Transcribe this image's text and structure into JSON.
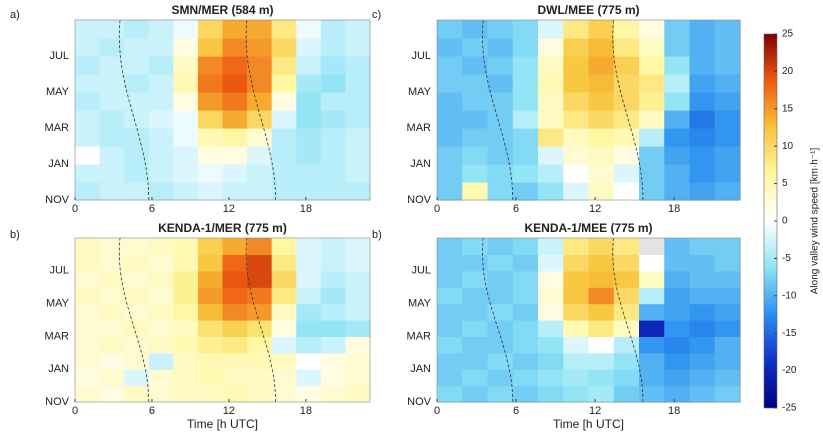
{
  "chart_data": [
    {
      "type": "heatmap",
      "label": "a)",
      "title": "SMN/MER (584 m)",
      "xlim": [
        0,
        23
      ],
      "xticks": [
        0,
        6,
        12,
        18
      ],
      "y_categories": [
        "NOV",
        null,
        "JAN",
        null,
        "MAR",
        null,
        "MAY",
        null,
        "JUL",
        null
      ],
      "values": [
        [
          -4,
          -3,
          -3,
          -4,
          -3,
          -2,
          -3,
          -3,
          -4,
          -4,
          -4,
          -4
        ],
        [
          -3,
          -3,
          -4,
          -3,
          -2,
          -1,
          -2,
          -3,
          -4,
          -4,
          -4,
          -3
        ],
        [
          0,
          -3,
          -4,
          -3,
          -2,
          2,
          2,
          -2,
          -4,
          -5,
          -4,
          -3
        ],
        [
          -3,
          -4,
          -4,
          -3,
          -1,
          5,
          6,
          3,
          -4,
          -5,
          -4,
          -3
        ],
        [
          -3,
          -4,
          -3,
          -2,
          -1,
          10,
          14,
          10,
          -2,
          -6,
          -5,
          -4
        ],
        [
          -4,
          -3,
          -3,
          -3,
          2,
          15,
          17,
          14,
          2,
          -6,
          -4,
          -4
        ],
        [
          -3,
          -3,
          -4,
          -3,
          5,
          17,
          19,
          16,
          6,
          -5,
          -6,
          -4
        ],
        [
          -4,
          -3,
          -3,
          -4,
          4,
          16,
          18,
          16,
          8,
          -3,
          -5,
          -4
        ],
        [
          -3,
          -4,
          -3,
          -3,
          2,
          12,
          16,
          15,
          10,
          -2,
          -4,
          -3
        ],
        [
          -3,
          -3,
          -4,
          -3,
          -1,
          10,
          14,
          14,
          8,
          -1,
          -4,
          -3
        ]
      ]
    },
    {
      "type": "heatmap",
      "label": "c)",
      "title": "DWL/MEE (775 m)",
      "xlim": [
        0,
        23
      ],
      "xticks": [
        0,
        6,
        12,
        18
      ],
      "y_categories": [
        "NOV",
        null,
        "JAN",
        null,
        "MAR",
        null,
        "MAY",
        null,
        "JUL",
        null
      ],
      "values": [
        [
          -8,
          5,
          -7,
          -8,
          -6,
          -2,
          4,
          0,
          -8,
          -10,
          -11,
          -10
        ],
        [
          -8,
          -6,
          -7,
          -6,
          -4,
          0,
          3,
          -2,
          -8,
          -10,
          -12,
          -11
        ],
        [
          -8,
          -7,
          -8,
          -7,
          -2,
          3,
          4,
          2,
          -8,
          -11,
          -12,
          -11
        ],
        [
          -9,
          -8,
          -8,
          -7,
          8,
          4,
          6,
          5,
          -4,
          -12,
          -13,
          -12
        ],
        [
          -9,
          -9,
          -8,
          -4,
          4,
          8,
          10,
          8,
          4,
          -10,
          -14,
          -12
        ],
        [
          -9,
          -8,
          -8,
          -6,
          4,
          10,
          12,
          10,
          7,
          -6,
          -12,
          -11
        ],
        [
          -8,
          -8,
          -9,
          -6,
          5,
          12,
          13,
          10,
          8,
          -4,
          -11,
          -10
        ],
        [
          -8,
          -9,
          -8,
          -6,
          4,
          12,
          14,
          11,
          6,
          -6,
          -10,
          -9
        ],
        [
          -9,
          -8,
          -9,
          -7,
          2,
          11,
          13,
          8,
          4,
          -8,
          -10,
          -9
        ],
        [
          -8,
          -9,
          -8,
          -7,
          -2,
          8,
          11,
          6,
          2,
          -8,
          -10,
          -9
        ]
      ]
    },
    {
      "type": "heatmap",
      "label": "b)",
      "title": "KENDA-1/MER (775 m)",
      "xlabel": "Time [h UTC]",
      "xlim": [
        0,
        23
      ],
      "xticks": [
        0,
        6,
        12,
        18
      ],
      "y_categories": [
        "NOV",
        null,
        "JAN",
        null,
        "MAR",
        null,
        "MAY",
        null,
        "JUL",
        null
      ],
      "values": [
        [
          3,
          2,
          4,
          3,
          4,
          4,
          5,
          4,
          3,
          2,
          3,
          4
        ],
        [
          2,
          3,
          -2,
          3,
          4,
          5,
          4,
          4,
          3,
          -2,
          2,
          3
        ],
        [
          3,
          2,
          3,
          -3,
          4,
          5,
          5,
          5,
          4,
          0,
          2,
          3
        ],
        [
          3,
          4,
          3,
          4,
          5,
          7,
          8,
          6,
          -2,
          -4,
          -3,
          2
        ],
        [
          3,
          3,
          4,
          3,
          4,
          9,
          11,
          9,
          2,
          -6,
          -6,
          -5
        ],
        [
          3,
          4,
          3,
          4,
          6,
          13,
          16,
          15,
          4,
          -5,
          -4,
          -3
        ],
        [
          4,
          3,
          4,
          3,
          7,
          15,
          18,
          17,
          8,
          -3,
          -5,
          -3
        ],
        [
          3,
          4,
          3,
          4,
          7,
          14,
          19,
          20,
          10,
          -2,
          -4,
          -3
        ],
        [
          4,
          3,
          4,
          3,
          5,
          12,
          18,
          20,
          8,
          -2,
          -3,
          -2
        ],
        [
          4,
          3,
          3,
          4,
          5,
          11,
          14,
          16,
          6,
          -2,
          -3,
          -2
        ]
      ]
    },
    {
      "type": "heatmap",
      "label": "b)",
      "title": "KENDA-1/MEE (775 m)",
      "xlabel": "Time [h UTC]",
      "xlim": [
        0,
        23
      ],
      "xticks": [
        0,
        6,
        12,
        18
      ],
      "y_categories": [
        "NOV",
        null,
        "JAN",
        null,
        "MAR",
        null,
        "MAY",
        null,
        "JUL",
        null
      ],
      "values": [
        [
          -7,
          -8,
          -7,
          -8,
          -7,
          -6,
          -5,
          -8,
          -9,
          -10,
          -9,
          -8
        ],
        [
          -8,
          -7,
          -8,
          -7,
          -6,
          -5,
          -6,
          -7,
          -10,
          -11,
          -10,
          -9
        ],
        [
          -8,
          -8,
          -7,
          -8,
          -7,
          -4,
          -4,
          -6,
          -10,
          -12,
          -11,
          -10
        ],
        [
          -7,
          -8,
          -8,
          -7,
          -6,
          -2,
          0,
          -4,
          -12,
          -13,
          -12,
          -10
        ],
        [
          -8,
          -7,
          -8,
          -7,
          -4,
          5,
          8,
          4,
          -20,
          -12,
          -13,
          -12
        ],
        [
          -8,
          -8,
          -7,
          -8,
          2,
          10,
          12,
          8,
          -10,
          -11,
          -12,
          -11
        ],
        [
          -7,
          -8,
          -8,
          -7,
          3,
          12,
          16,
          10,
          -4,
          -11,
          -10,
          -10
        ],
        [
          -8,
          -7,
          -8,
          -7,
          2,
          12,
          13,
          12,
          4,
          -10,
          -9,
          -9
        ],
        [
          -8,
          -8,
          -7,
          -8,
          -2,
          10,
          12,
          10,
          0,
          -9,
          -9,
          -8
        ],
        [
          -8,
          -7,
          -8,
          -7,
          -3,
          8,
          10,
          8,
          null,
          -9,
          -8,
          -8
        ]
      ]
    }
  ],
  "colorbar": {
    "label": "Along valley wind speed [km·h⁻¹]",
    "lim": [
      -25,
      25
    ],
    "ticks": [
      -25,
      -20,
      -15,
      -10,
      -5,
      0,
      5,
      10,
      15,
      20,
      25
    ],
    "colormap": [
      "#00007f",
      "#1030c8",
      "#2a8ff0",
      "#8fe4f6",
      "#ffffff",
      "#fff7a0",
      "#f8c43a",
      "#ef5a12",
      "#7f0000"
    ],
    "missing_color": "#e4e4e4"
  }
}
